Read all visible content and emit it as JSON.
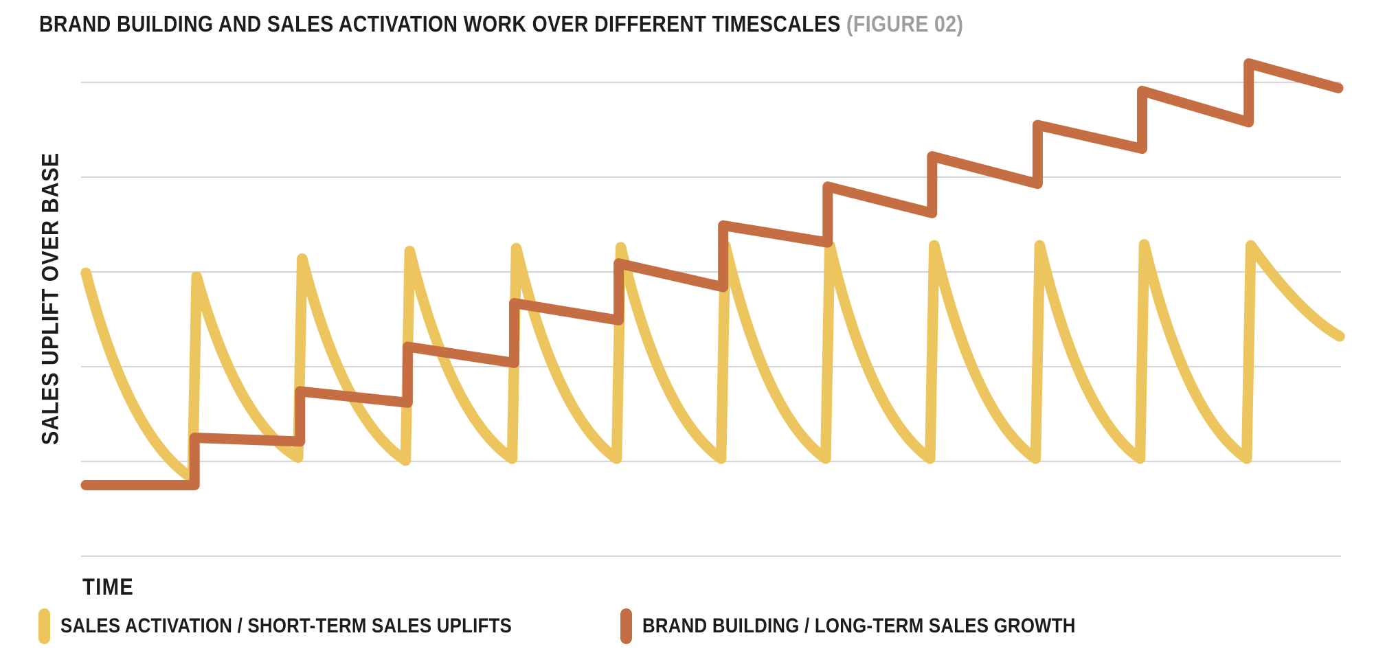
{
  "header": {
    "title": "BRAND BUILDING AND SALES ACTIVATION WORK OVER DIFFERENT TIMESCALES",
    "figure_tag": "(FIGURE 02)"
  },
  "axes": {
    "y_label": "SALES UPLIFT OVER BASE",
    "x_label": "TIME"
  },
  "legend": {
    "items": [
      {
        "label": "SALES ACTIVATION / SHORT-TERM SALES UPLIFTS",
        "color": "#EDC55F"
      },
      {
        "label": "BRAND BUILDING / LONG-TERM SALES GROWTH",
        "color": "#C66E43"
      }
    ]
  },
  "colors": {
    "title": "#1C1C1C",
    "figure_tag": "#9D9D9D",
    "grid": "#C7C7C7",
    "background": "#FFFFFF",
    "activation": "#EDC55F",
    "brand": "#C66E43"
  },
  "chart_data": {
    "type": "line",
    "title": "BRAND BUILDING AND SALES ACTIVATION WORK OVER DIFFERENT TIMESCALES (FIGURE 02)",
    "xlabel": "TIME",
    "ylabel": "SALES UPLIFT OVER BASE",
    "x_range": [
      0,
      12
    ],
    "y_range": [
      0,
      5.5
    ],
    "x_unit": "campaign cycles (unlabeled conceptual time axis)",
    "y_unit": "gridline units of sales uplift over base (unlabeled)",
    "gridline_y_values": [
      0,
      1,
      2,
      3,
      4,
      5
    ],
    "axis_ticks_labeled": false,
    "grid": "horizontal only",
    "legend_position": "bottom",
    "series": [
      {
        "name": "SALES ACTIVATION / SHORT-TERM SALES UPLIFTS",
        "color": "#EDC55F",
        "shape": "sawtooth-decay",
        "start": {
          "t": 0,
          "v": 2.99,
          "decay_to": 0.82
        },
        "bursts": [
          {
            "t": 1.04,
            "peak": 2.95,
            "decay_to": 1.04
          },
          {
            "t": 2.05,
            "peak": 3.14,
            "decay_to": 1.01
          },
          {
            "t": 3.08,
            "peak": 3.22,
            "decay_to": 1.03
          },
          {
            "t": 4.1,
            "peak": 3.25,
            "decay_to": 1.03
          },
          {
            "t": 5.1,
            "peak": 3.26,
            "decay_to": 1.03
          },
          {
            "t": 6.1,
            "peak": 3.28,
            "decay_to": 1.03
          },
          {
            "t": 7.1,
            "peak": 3.28,
            "decay_to": 1.03
          },
          {
            "t": 8.1,
            "peak": 3.28,
            "decay_to": 1.03
          },
          {
            "t": 9.11,
            "peak": 3.28,
            "decay_to": 1.03
          },
          {
            "t": 10.11,
            "peak": 3.29,
            "decay_to": 1.03
          },
          {
            "t": 11.13,
            "peak": 3.28,
            "decay_to": 2.32,
            "partial": true
          }
        ],
        "end_t": 12
      },
      {
        "name": "BRAND BUILDING / LONG-TERM SALES GROWTH",
        "color": "#C66E43",
        "shape": "staircase",
        "start": {
          "t": 0,
          "v": 0.75
        },
        "steps": [
          {
            "t": 1.04,
            "jump_to": 1.25,
            "sag_to": 1.21
          },
          {
            "t": 2.05,
            "jump_to": 1.74,
            "sag_to": 1.62
          },
          {
            "t": 3.08,
            "jump_to": 2.21,
            "sag_to": 2.04
          },
          {
            "t": 4.1,
            "jump_to": 2.67,
            "sag_to": 2.49
          },
          {
            "t": 5.1,
            "jump_to": 3.09,
            "sag_to": 2.84
          },
          {
            "t": 6.1,
            "jump_to": 3.49,
            "sag_to": 3.31
          },
          {
            "t": 7.1,
            "jump_to": 3.9,
            "sag_to": 3.62
          },
          {
            "t": 8.1,
            "jump_to": 4.22,
            "sag_to": 3.93
          },
          {
            "t": 9.11,
            "jump_to": 4.55,
            "sag_to": 4.3
          },
          {
            "t": 10.11,
            "jump_to": 4.91,
            "sag_to": 4.58
          },
          {
            "t": 11.13,
            "jump_to": 5.2,
            "sag_to": 4.94
          }
        ],
        "end_t": 12
      }
    ]
  }
}
